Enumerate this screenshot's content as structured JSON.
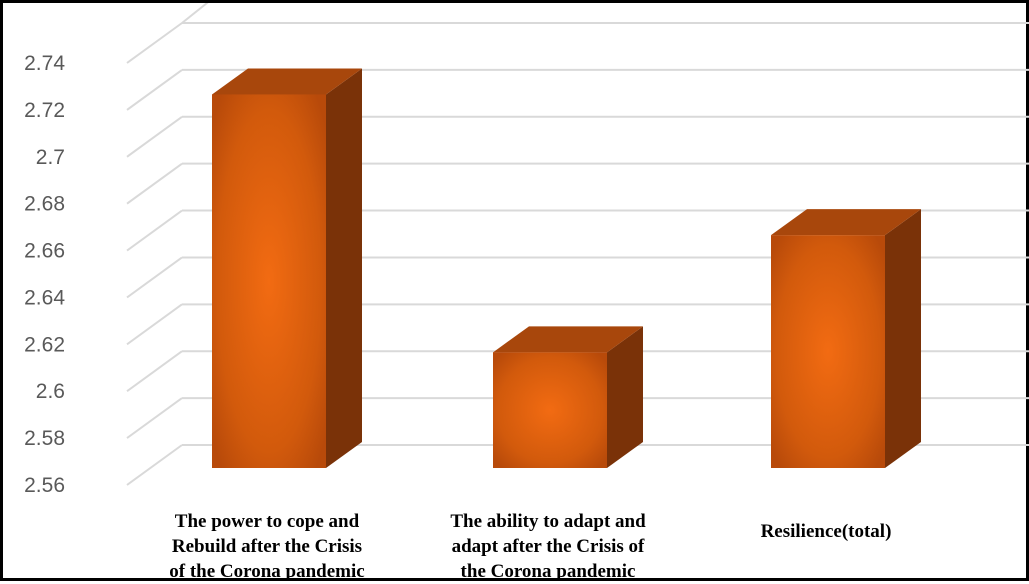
{
  "chart_data": {
    "type": "bar",
    "style": "3d-column",
    "categories": [
      [
        "The power to cope and",
        "Rebuild after the Crisis",
        "of the Corona pandemic"
      ],
      [
        "The ability to adapt and",
        "adapt after the Crisis of",
        "the Corona pandemic"
      ],
      [
        "Resilience(total)"
      ]
    ],
    "values": [
      2.73,
      2.62,
      2.67
    ],
    "ylim": [
      2.56,
      2.74
    ],
    "yticks": [
      "2.56",
      "2.58",
      "2.6",
      "2.62",
      "2.64",
      "2.66",
      "2.68",
      "2.7",
      "2.72",
      "2.74"
    ],
    "title": "",
    "xlabel": "",
    "ylabel": "",
    "grid": true,
    "legend": "none",
    "colors": {
      "bar_front_center": "#f26b12",
      "bar_front_edge": "#b84a0a",
      "bar_top": "#a8470c",
      "bar_side": "#7a3208",
      "gridline": "#d9d9d9",
      "tick_text": "#595959"
    }
  }
}
